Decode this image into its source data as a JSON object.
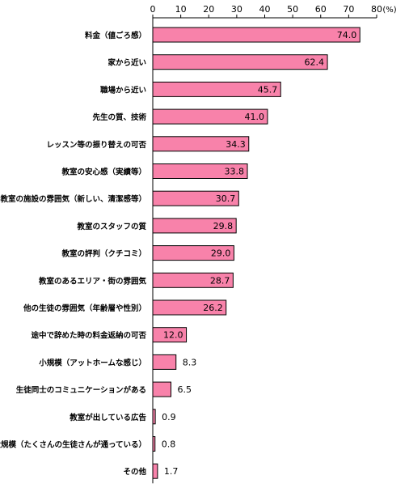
{
  "chart_data": {
    "type": "bar",
    "orientation": "horizontal",
    "title": "",
    "xlabel": "",
    "ylabel": "",
    "unit": "(%)",
    "xlim": [
      0,
      80
    ],
    "xticks": [
      0,
      10,
      20,
      30,
      40,
      50,
      60,
      70,
      80
    ],
    "grid": false,
    "legend": "none",
    "bar_color": "#f882aa",
    "bar_edge_color": "#000000",
    "categories": [
      "料金（値ごろ感）",
      "家から近い",
      "職場から近い",
      "先生の質、技術",
      "レッスン等の振り替えの可否",
      "教室の安心感（実績等）",
      "教室の施設の雰囲気（新しい、清潔感等）",
      "教室のスタッフの質",
      "教室の評判（クチコミ）",
      "教室のあるエリア・街の雰囲気",
      "他の生徒の雰囲気（年齢層や性別）",
      "途中で辞めた時の料金返納の可否",
      "小規模（アットホームな感じ）",
      "生徒同士のコミュニケーションがある",
      "教室が出している広告",
      "大規模（たくさんの生徒さんが通っている）",
      "その他"
    ],
    "values": [
      74.0,
      62.4,
      45.7,
      41.0,
      34.3,
      33.8,
      30.7,
      29.8,
      29.0,
      28.7,
      26.2,
      12.0,
      8.3,
      6.5,
      0.9,
      0.8,
      1.7
    ],
    "value_labels": [
      "74.0",
      "62.4",
      "45.7",
      "41.0",
      "34.3",
      "33.8",
      "30.7",
      "29.8",
      "29.0",
      "28.7",
      "26.2",
      "12.0",
      "8.3",
      "6.5",
      "0.9",
      "0.8",
      "1.7"
    ]
  }
}
